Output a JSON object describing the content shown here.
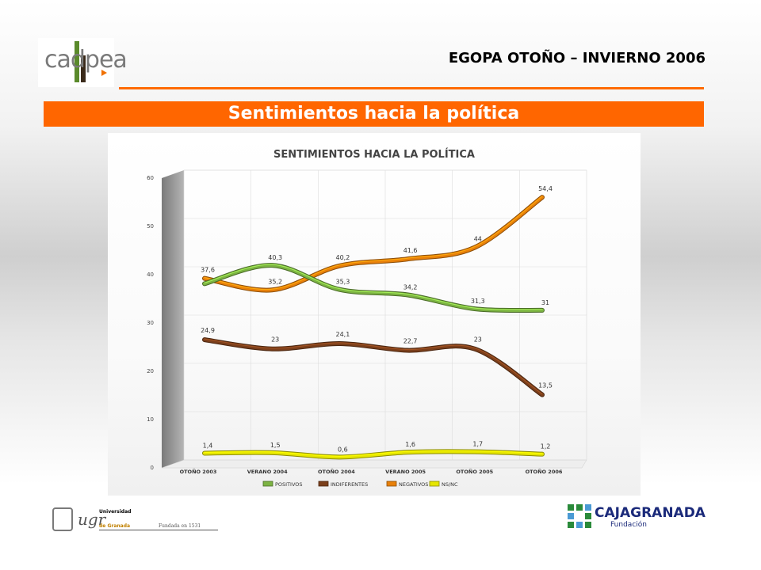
{
  "header": {
    "logo_text": "cadpea",
    "title": "EGOPA OTOÑO – INVIERNO 2006"
  },
  "banner": {
    "title": "Sentimientos hacia la política"
  },
  "chart_data": {
    "type": "line",
    "title": "SENTIMIENTOS HACIA LA POLÍTICA",
    "categories": [
      "OTOÑO 2003",
      "VERANO 2004",
      "OTOÑO 2004",
      "VERANO 2005",
      "OTOÑO 2005",
      "OTOÑO 2006"
    ],
    "ylim": [
      0,
      60
    ],
    "yticks": [
      0,
      10,
      20,
      30,
      40,
      50,
      60
    ],
    "grid": true,
    "legend_position": "bottom",
    "series": [
      {
        "name": "POSITIVOS",
        "color": "#7cb342",
        "values": [
          36.5,
          40.3,
          35.3,
          34.2,
          31.3,
          31
        ],
        "labels": [
          "",
          "40,3",
          "35,3",
          "34,2",
          "31,3",
          "31"
        ]
      },
      {
        "name": "INDIFERENTES",
        "color": "#7b3f1b",
        "values": [
          24.9,
          23,
          24.1,
          22.7,
          23,
          13.5
        ],
        "labels": [
          "24,9",
          "23",
          "24,1",
          "22,7",
          "23",
          "13,5"
        ]
      },
      {
        "name": "NEGATIVOS",
        "color": "#e8800a",
        "values": [
          37.6,
          35.2,
          40.2,
          41.6,
          44,
          54.4
        ],
        "labels": [
          "37,6",
          "35,2",
          "40,2",
          "41,6",
          "44",
          "54,4"
        ]
      },
      {
        "name": "NS/NC",
        "color": "#e6e600",
        "values": [
          1.4,
          1.5,
          0.6,
          1.6,
          1.7,
          1.2
        ],
        "labels": [
          "1,4",
          "1,5",
          "0,6",
          "1,6",
          "1,7",
          "1,2"
        ]
      }
    ]
  },
  "footer": {
    "university_mark": "ugr",
    "university_line1": "Universidad",
    "university_line2": "de Granada",
    "university_founded": "Fundada en 1531",
    "sponsor_name": "CAJAGRANADA",
    "sponsor_sub": "Fundación"
  }
}
